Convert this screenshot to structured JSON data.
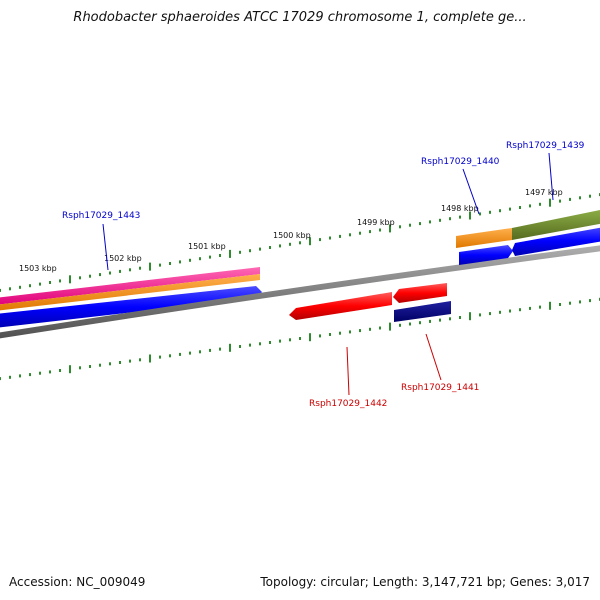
{
  "title": "Rhodobacter sphaeroides ATCC 17029 chromosome 1, complete ge...",
  "footer": {
    "accession": "Accession: NC_009049",
    "summary": "Topology: circular; Length: 3,147,721 bp; Genes: 3,017"
  },
  "ruler": {
    "ticks": [
      "1503 kbp",
      "1502 kbp",
      "1501 kbp",
      "1500 kbp",
      "1499 kbp",
      "1498 kbp",
      "1497 kbp"
    ]
  },
  "genes": [
    {
      "id": "Rsph17029_1443",
      "strand": "forward",
      "color": "#0000cc"
    },
    {
      "id": "Rsph17029_1442",
      "strand": "reverse",
      "color": "#cc0000"
    },
    {
      "id": "Rsph17029_1441",
      "strand": "reverse",
      "color": "#cc0000"
    },
    {
      "id": "Rsph17029_1440",
      "strand": "forward",
      "color": "#0000cc"
    },
    {
      "id": "Rsph17029_1439",
      "strand": "forward",
      "color": "#0000cc"
    }
  ],
  "colors": {
    "backbone": "#808080",
    "tick": "#2e8b2e",
    "cds_forward": "#0000ff",
    "cds_reverse": "#ff0000",
    "cds_reverse_dark": "#000080",
    "gene_pink": "#ff1493",
    "gene_orange": "#ff8c00",
    "gene_olive": "#6b8e23"
  }
}
